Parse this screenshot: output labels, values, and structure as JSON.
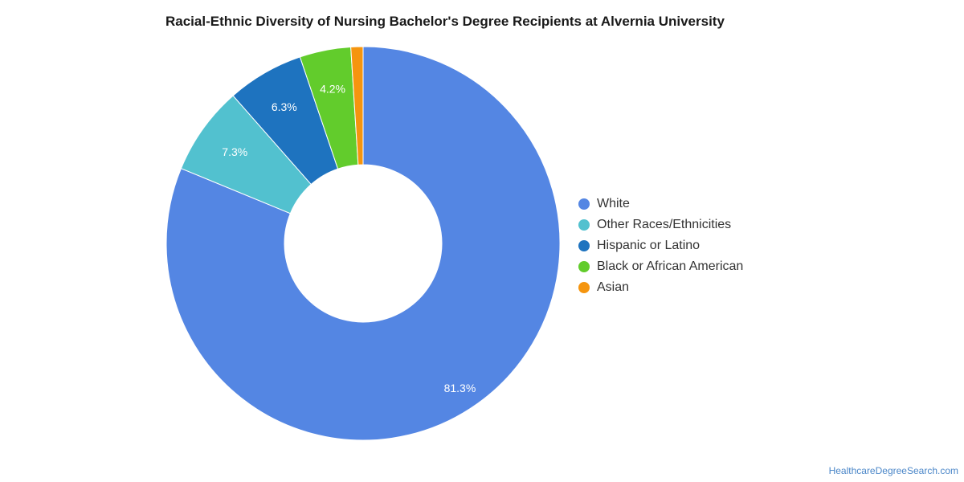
{
  "chart_data": {
    "type": "pie",
    "title": "Racial-Ethnic Diversity of Nursing Bachelor's Degree Recipients at Alvernia University",
    "donut": true,
    "legend_position": "right",
    "slices": [
      {
        "name": "White",
        "value": 81.3,
        "label": "81.3%",
        "color": "#5486e3"
      },
      {
        "name": "Other Races/Ethnicities",
        "value": 7.3,
        "label": "7.3%",
        "color": "#52c1cf"
      },
      {
        "name": "Hispanic or Latino",
        "value": 6.3,
        "label": "6.3%",
        "color": "#1e73bf"
      },
      {
        "name": "Black or African American",
        "value": 4.2,
        "label": "4.2%",
        "color": "#62cc2c"
      },
      {
        "name": "Asian",
        "value": 1.0,
        "label": "",
        "color": "#f5950f"
      }
    ]
  },
  "source": {
    "text": "HealthcareDegreeSearch.com"
  }
}
